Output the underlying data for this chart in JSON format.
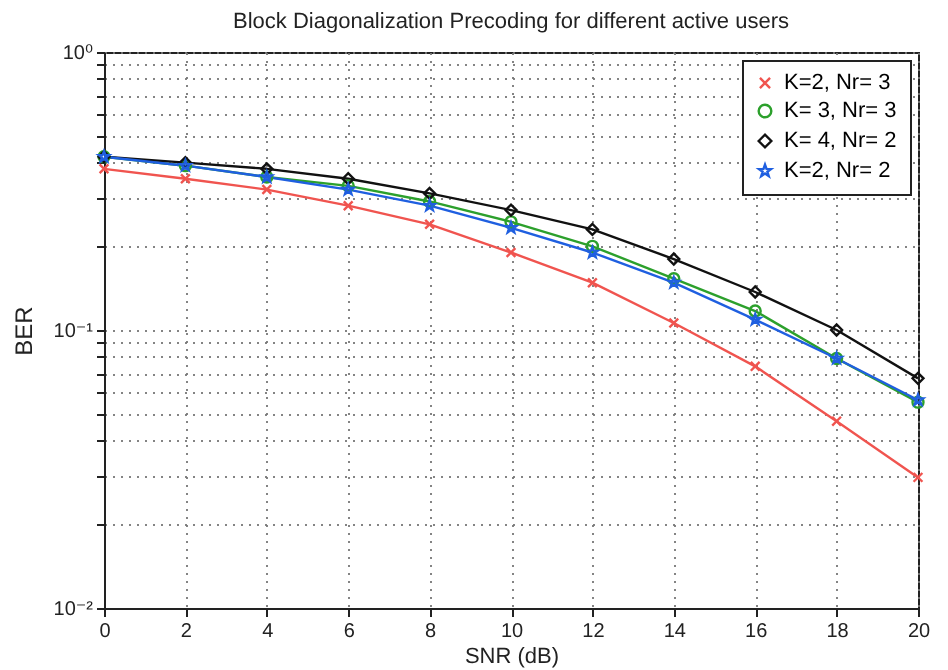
{
  "chart_data": {
    "type": "line",
    "title": "Block Diagonalization Precoding for different active users",
    "xlabel": "SNR (dB)",
    "ylabel": "BER",
    "x": [
      0,
      2,
      4,
      6,
      8,
      10,
      12,
      14,
      16,
      18,
      20
    ],
    "series": [
      {
        "name": "K=2, Nr= 3",
        "color": "#f0544f",
        "marker": "cross",
        "values": [
          0.38,
          0.35,
          0.32,
          0.28,
          0.24,
          0.19,
          0.148,
          0.106,
          0.074,
          0.047,
          0.0295
        ]
      },
      {
        "name": "K= 3, Nr= 3",
        "color": "#2ca02c",
        "marker": "circle",
        "values": [
          0.42,
          0.39,
          0.355,
          0.33,
          0.29,
          0.245,
          0.2,
          0.153,
          0.117,
          0.079,
          0.055
        ]
      },
      {
        "name": "K= 4, Nr= 2",
        "color": "#111111",
        "marker": "diamond",
        "values": [
          0.42,
          0.4,
          0.38,
          0.35,
          0.31,
          0.27,
          0.23,
          0.18,
          0.137,
          0.1,
          0.067
        ]
      },
      {
        "name": "K=2, Nr= 2",
        "color": "#1f5fe0",
        "marker": "star",
        "values": [
          0.42,
          0.39,
          0.355,
          0.32,
          0.28,
          0.233,
          0.19,
          0.148,
          0.109,
          0.079,
          0.056
        ]
      }
    ],
    "xlim": [
      0,
      20
    ],
    "xticks": [
      0,
      2,
      4,
      6,
      8,
      10,
      12,
      14,
      16,
      18,
      20
    ],
    "ylim": [
      0.01,
      1
    ],
    "log": "y",
    "yticks": [
      {
        "value": 0.01,
        "label": "10⁻²"
      },
      {
        "value": 0.02,
        "label": null
      },
      {
        "value": 0.03,
        "label": null
      },
      {
        "value": 0.04,
        "label": null
      },
      {
        "value": 0.05,
        "label": null
      },
      {
        "value": 0.06,
        "label": null
      },
      {
        "value": 0.07,
        "label": null
      },
      {
        "value": 0.08,
        "label": null
      },
      {
        "value": 0.09,
        "label": null
      },
      {
        "value": 0.1,
        "label": "10⁻¹"
      },
      {
        "value": 0.2,
        "label": null
      },
      {
        "value": 0.3,
        "label": null
      },
      {
        "value": 0.4,
        "label": null
      },
      {
        "value": 0.5,
        "label": null
      },
      {
        "value": 0.6,
        "label": null
      },
      {
        "value": 0.7,
        "label": null
      },
      {
        "value": 0.8,
        "label": null
      },
      {
        "value": 0.9,
        "label": null
      },
      {
        "value": 1,
        "label": "10⁰"
      }
    ],
    "grid": true,
    "legend": "top right",
    "line_style": "solid"
  }
}
